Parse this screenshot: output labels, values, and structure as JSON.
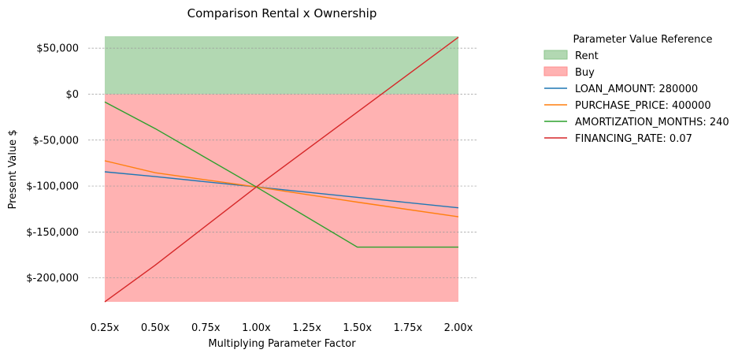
{
  "chart_data": {
    "type": "line",
    "title": "Comparison Rental x Ownership",
    "xlabel": "Multiplying Parameter Factor",
    "ylabel": "Present Value $",
    "x": [
      0.25,
      0.5,
      1.0,
      1.5,
      2.0
    ],
    "x_ticks": [
      0.25,
      0.5,
      0.75,
      1.0,
      1.25,
      1.5,
      1.75,
      2.0
    ],
    "x_tick_labels": [
      "0.25x",
      "0.50x",
      "0.75x",
      "1.00x",
      "1.25x",
      "1.50x",
      "1.75x",
      "2.00x"
    ],
    "xlim": [
      0.25,
      2.0
    ],
    "y_ticks": [
      50000,
      0,
      -50000,
      -100000,
      -150000,
      -200000
    ],
    "y_tick_labels": [
      "$50,000",
      "$0",
      "$-50,000",
      "$-100,000",
      "$-150,000",
      "$-200,000"
    ],
    "ylim": [
      -226000,
      63000
    ],
    "grid": "horizontal dashed",
    "legend": {
      "title": "Parameter Value Reference",
      "placement": "outside-right"
    },
    "regions": [
      {
        "name": "Rent",
        "from": 0,
        "to": "top",
        "color": "#b2d8b2"
      },
      {
        "name": "Buy",
        "from": "bottom",
        "to": 0,
        "color": "#ffb2b2"
      }
    ],
    "series": [
      {
        "name": "LOAN_AMOUNT: 280000",
        "color": "#1f77b4",
        "values": [
          -84500,
          -89700,
          -101000,
          -112300,
          -123700
        ]
      },
      {
        "name": "PURCHASE_PRICE: 400000",
        "color": "#ff7f0e",
        "values": [
          -72500,
          -85500,
          -101000,
          -117500,
          -133500
        ]
      },
      {
        "name": "AMORTIZATION_MONTHS: 240",
        "color": "#2ca02c",
        "values": [
          -8500,
          -37500,
          -101000,
          -166500,
          -166500
        ]
      },
      {
        "name": "FINANCING_RATE: 0.07",
        "color": "#d62728",
        "values": [
          -226000,
          -186000,
          -101000,
          -19500,
          62000
        ]
      }
    ]
  }
}
